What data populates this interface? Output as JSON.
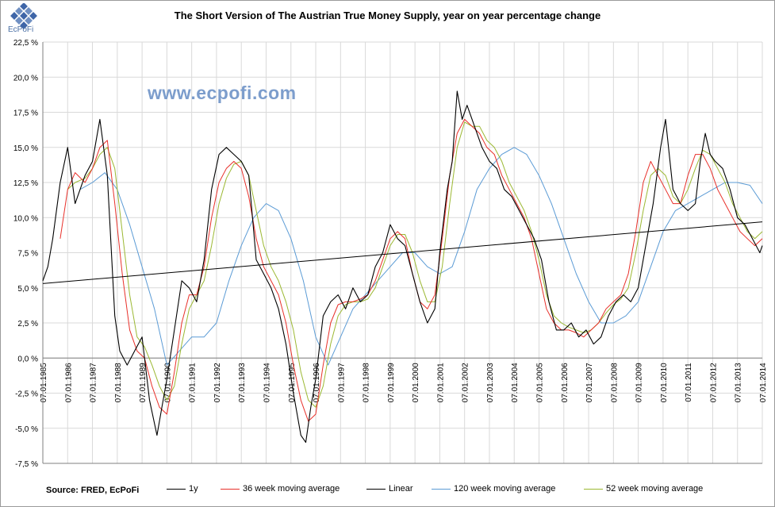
{
  "header": {
    "logo_text": "EcPoFi",
    "title": "The Short Version of The Austrian True Money Supply, year on year percentage change",
    "watermark": "www.ecpofi.com"
  },
  "footer": {
    "source": "Source: FRED,  EcPoFi"
  },
  "colors": {
    "1y": "#000000",
    "ma36": "#e8302a",
    "linear": "#000000",
    "ma120": "#5b9bd5",
    "ma52": "#9bb832",
    "grid": "#d9d9d9",
    "watermark": "#7c9dcc"
  },
  "chart_data": {
    "type": "line",
    "title": "The Short Version of The Austrian True Money Supply, year on year percentage change",
    "xlabel": "",
    "ylabel": "",
    "ylim": [
      -7.5,
      22.5
    ],
    "xlim": [
      1985.0,
      2014.0
    ],
    "y_ticks": [
      "22,5 %",
      "20,0 %",
      "17,5 %",
      "15,0 %",
      "12,5 %",
      "10,0 %",
      "7,5 %",
      "5,0 %",
      "2,5 %",
      "0,0 %",
      "-2,5 %",
      "-5,0 %",
      "-7,5 %"
    ],
    "x_ticks": [
      "07.01.1985",
      "07.01.1986",
      "07.01.1987",
      "07.01.1988",
      "07.01.1989",
      "07.01.1990",
      "07.01.1991",
      "07.01.1992",
      "07.01.1993",
      "07.01.1994",
      "07.01.1995",
      "07.01.1996",
      "07.01.1997",
      "07.01.1998",
      "07.01.1999",
      "07.01.2000",
      "07.01.2001",
      "07.01.2002",
      "07.01.2003",
      "07.01.2004",
      "07.01.2005",
      "07.01.2006",
      "07.01.2007",
      "07.01.2008",
      "07.01.2009",
      "07.01.2010",
      "07.01.2011",
      "07.01.2012",
      "07.01.2013",
      "07.01.2014"
    ],
    "grid": true,
    "legend": "bottom",
    "series": [
      {
        "name": "1y",
        "x": [
          1985.0,
          1985.2,
          1985.4,
          1985.7,
          1986.0,
          1986.3,
          1986.7,
          1987.0,
          1987.3,
          1987.6,
          1987.9,
          1988.1,
          1988.4,
          1988.7,
          1989.0,
          1989.3,
          1989.6,
          1989.8,
          1990.0,
          1990.3,
          1990.6,
          1990.9,
          1991.2,
          1991.5,
          1991.8,
          1992.1,
          1992.4,
          1992.7,
          1993.0,
          1993.3,
          1993.6,
          1993.9,
          1994.2,
          1994.5,
          1994.8,
          1995.1,
          1995.4,
          1995.6,
          1995.8,
          1996.0,
          1996.3,
          1996.6,
          1996.9,
          1997.2,
          1997.5,
          1997.8,
          1998.1,
          1998.4,
          1998.7,
          1999.0,
          1999.3,
          1999.6,
          1999.9,
          2000.2,
          2000.5,
          2000.8,
          2001.0,
          2001.3,
          2001.5,
          2001.7,
          2001.9,
          2002.1,
          2002.4,
          2002.7,
          2003.0,
          2003.3,
          2003.6,
          2003.9,
          2004.2,
          2004.5,
          2004.8,
          2005.1,
          2005.4,
          2005.7,
          2006.0,
          2006.3,
          2006.6,
          2006.9,
          2007.2,
          2007.5,
          2007.8,
          2008.1,
          2008.4,
          2008.7,
          2009.0,
          2009.3,
          2009.6,
          2009.9,
          2010.1,
          2010.4,
          2010.7,
          2011.0,
          2011.3,
          2011.5,
          2011.7,
          2011.9,
          2012.1,
          2012.4,
          2012.7,
          2013.0,
          2013.3,
          2013.6,
          2013.9,
          2014.0
        ],
        "values": [
          5.5,
          6.5,
          8.5,
          12.5,
          15.0,
          11.0,
          13.0,
          14.0,
          17.0,
          13.0,
          3.0,
          0.5,
          -0.5,
          0.5,
          1.5,
          -3.0,
          -5.5,
          -3.5,
          -1.5,
          2.0,
          5.5,
          5.0,
          4.0,
          7.0,
          12.0,
          14.5,
          15.0,
          14.5,
          14.0,
          13.0,
          7.0,
          6.0,
          5.0,
          3.5,
          1.0,
          -2.5,
          -5.5,
          -6.0,
          -3.5,
          -1.5,
          3.0,
          4.0,
          4.5,
          3.5,
          5.0,
          4.0,
          4.5,
          6.5,
          7.5,
          9.5,
          8.5,
          8.0,
          6.0,
          4.0,
          2.5,
          3.5,
          7.5,
          12.0,
          14.0,
          19.0,
          17.0,
          18.0,
          16.5,
          15.0,
          14.0,
          13.5,
          12.0,
          11.5,
          10.5,
          9.5,
          8.5,
          7.0,
          4.0,
          2.0,
          2.0,
          2.5,
          1.5,
          2.0,
          1.0,
          1.5,
          3.0,
          4.0,
          4.5,
          4.0,
          5.0,
          8.0,
          11.0,
          15.0,
          17.0,
          12.0,
          11.0,
          10.5,
          11.0,
          14.0,
          16.0,
          14.5,
          14.0,
          13.5,
          12.0,
          10.0,
          9.5,
          8.5,
          7.5,
          8.0
        ]
      },
      {
        "name": "36 week moving average",
        "x": [
          1985.7,
          1986.0,
          1986.3,
          1986.7,
          1987.0,
          1987.3,
          1987.6,
          1987.9,
          1988.2,
          1988.5,
          1988.8,
          1989.1,
          1989.4,
          1989.7,
          1990.0,
          1990.3,
          1990.6,
          1990.9,
          1991.2,
          1991.5,
          1991.8,
          1992.1,
          1992.4,
          1992.7,
          1993.0,
          1993.3,
          1993.6,
          1993.9,
          1994.2,
          1994.5,
          1994.8,
          1995.1,
          1995.4,
          1995.7,
          1996.0,
          1996.3,
          1996.6,
          1996.9,
          1997.2,
          1997.5,
          1997.8,
          1998.1,
          1998.4,
          1998.7,
          1999.0,
          1999.3,
          1999.6,
          1999.9,
          2000.2,
          2000.5,
          2000.8,
          2001.1,
          2001.4,
          2001.7,
          2002.0,
          2002.3,
          2002.6,
          2002.9,
          2003.2,
          2003.5,
          2003.8,
          2004.1,
          2004.4,
          2004.7,
          2005.0,
          2005.3,
          2005.6,
          2005.9,
          2006.2,
          2006.5,
          2006.8,
          2007.1,
          2007.4,
          2007.7,
          2008.0,
          2008.3,
          2008.6,
          2008.9,
          2009.2,
          2009.5,
          2009.8,
          2010.1,
          2010.4,
          2010.7,
          2011.0,
          2011.3,
          2011.6,
          2011.9,
          2012.2,
          2012.5,
          2012.8,
          2013.1,
          2013.4,
          2013.7,
          2014.0
        ],
        "values": [
          8.5,
          12.0,
          13.2,
          12.5,
          13.5,
          15.0,
          15.5,
          11.0,
          6.0,
          2.0,
          0.5,
          0.0,
          -2.0,
          -3.5,
          -4.0,
          -1.0,
          2.5,
          4.5,
          4.5,
          6.5,
          10.0,
          12.5,
          13.5,
          14.0,
          13.5,
          11.5,
          8.5,
          6.5,
          5.5,
          4.5,
          2.5,
          -0.5,
          -3.0,
          -4.5,
          -4.0,
          -0.5,
          2.5,
          3.8,
          4.0,
          4.0,
          4.2,
          4.5,
          5.5,
          7.0,
          8.5,
          9.0,
          8.5,
          6.0,
          4.0,
          3.5,
          4.5,
          8.5,
          13.0,
          16.0,
          17.0,
          16.5,
          16.0,
          15.0,
          14.5,
          13.0,
          12.0,
          11.0,
          10.0,
          8.5,
          6.0,
          3.5,
          2.5,
          2.0,
          2.0,
          1.8,
          1.5,
          2.0,
          2.5,
          3.5,
          4.0,
          4.5,
          6.0,
          9.0,
          12.5,
          14.0,
          13.0,
          12.0,
          11.0,
          11.0,
          13.0,
          14.5,
          14.5,
          13.5,
          12.0,
          11.0,
          10.0,
          9.0,
          8.5,
          8.0,
          8.5
        ]
      },
      {
        "name": "Linear",
        "x": [
          1985.0,
          2014.0
        ],
        "values": [
          5.3,
          9.7
        ]
      },
      {
        "name": "120 week moving average",
        "x": [
          1986.5,
          1987.0,
          1987.5,
          1988.0,
          1988.5,
          1989.0,
          1989.5,
          1990.0,
          1990.5,
          1991.0,
          1991.5,
          1992.0,
          1992.5,
          1993.0,
          1993.5,
          1994.0,
          1994.5,
          1995.0,
          1995.5,
          1996.0,
          1996.5,
          1997.0,
          1997.5,
          1998.0,
          1998.5,
          1999.0,
          1999.5,
          2000.0,
          2000.5,
          2001.0,
          2001.5,
          2002.0,
          2002.5,
          2003.0,
          2003.5,
          2004.0,
          2004.5,
          2005.0,
          2005.5,
          2006.0,
          2006.5,
          2007.0,
          2007.5,
          2008.0,
          2008.5,
          2009.0,
          2009.5,
          2010.0,
          2010.5,
          2011.0,
          2011.5,
          2012.0,
          2012.5,
          2013.0,
          2013.5,
          2014.0
        ],
        "values": [
          12.0,
          12.5,
          13.2,
          12.0,
          9.5,
          6.5,
          3.5,
          -0.5,
          0.5,
          1.5,
          1.5,
          2.5,
          5.5,
          8.0,
          10.0,
          11.0,
          10.5,
          8.5,
          5.5,
          1.5,
          -0.5,
          1.5,
          3.5,
          4.5,
          5.5,
          6.5,
          7.5,
          7.5,
          6.5,
          6.0,
          6.5,
          9.0,
          12.0,
          13.5,
          14.5,
          15.0,
          14.5,
          13.0,
          11.0,
          8.5,
          6.0,
          4.0,
          2.5,
          2.5,
          3.0,
          4.0,
          6.5,
          9.0,
          10.5,
          11.0,
          11.5,
          12.0,
          12.5,
          12.5,
          12.3,
          11.0
        ]
      },
      {
        "name": "52 week moving average",
        "x": [
          1986.0,
          1986.3,
          1986.7,
          1987.0,
          1987.3,
          1987.6,
          1987.9,
          1988.2,
          1988.5,
          1988.8,
          1989.1,
          1989.4,
          1989.7,
          1990.0,
          1990.3,
          1990.6,
          1990.9,
          1991.2,
          1991.5,
          1991.8,
          1992.1,
          1992.4,
          1992.7,
          1993.0,
          1993.3,
          1993.6,
          1993.9,
          1994.2,
          1994.5,
          1994.8,
          1995.1,
          1995.4,
          1995.7,
          1996.0,
          1996.3,
          1996.6,
          1996.9,
          1997.2,
          1997.5,
          1997.8,
          1998.1,
          1998.4,
          1998.7,
          1999.0,
          1999.3,
          1999.6,
          1999.9,
          2000.2,
          2000.5,
          2000.8,
          2001.1,
          2001.4,
          2001.7,
          2002.0,
          2002.3,
          2002.6,
          2002.9,
          2003.2,
          2003.5,
          2003.8,
          2004.1,
          2004.4,
          2004.7,
          2005.0,
          2005.3,
          2005.6,
          2005.9,
          2006.2,
          2006.5,
          2006.8,
          2007.1,
          2007.4,
          2007.7,
          2008.0,
          2008.3,
          2008.6,
          2008.9,
          2009.2,
          2009.5,
          2009.8,
          2010.1,
          2010.4,
          2010.7,
          2011.0,
          2011.3,
          2011.6,
          2011.9,
          2012.2,
          2012.5,
          2012.8,
          2013.1,
          2013.4,
          2013.7,
          2014.0
        ],
        "values": [
          12.0,
          12.5,
          12.8,
          13.5,
          14.5,
          15.0,
          13.5,
          9.0,
          4.5,
          1.5,
          0.8,
          -0.5,
          -2.0,
          -3.0,
          -2.0,
          1.0,
          3.5,
          4.5,
          5.5,
          8.0,
          11.0,
          12.8,
          13.8,
          14.0,
          13.0,
          10.5,
          8.0,
          6.5,
          5.5,
          4.0,
          2.0,
          -1.0,
          -3.0,
          -3.5,
          -2.0,
          1.0,
          3.0,
          3.8,
          4.0,
          4.0,
          4.2,
          5.0,
          6.5,
          8.0,
          8.8,
          8.8,
          7.5,
          5.5,
          4.0,
          4.0,
          6.5,
          11.0,
          15.0,
          16.8,
          16.5,
          16.5,
          15.5,
          15.0,
          14.0,
          12.5,
          11.5,
          10.5,
          9.0,
          7.0,
          4.5,
          3.0,
          2.5,
          2.2,
          2.0,
          1.8,
          2.0,
          2.5,
          3.2,
          3.8,
          4.2,
          5.0,
          7.5,
          10.5,
          13.0,
          13.5,
          13.0,
          11.5,
          11.0,
          12.0,
          13.5,
          14.8,
          14.5,
          13.5,
          12.5,
          11.0,
          10.0,
          9.0,
          8.5,
          9.0
        ]
      }
    ]
  }
}
